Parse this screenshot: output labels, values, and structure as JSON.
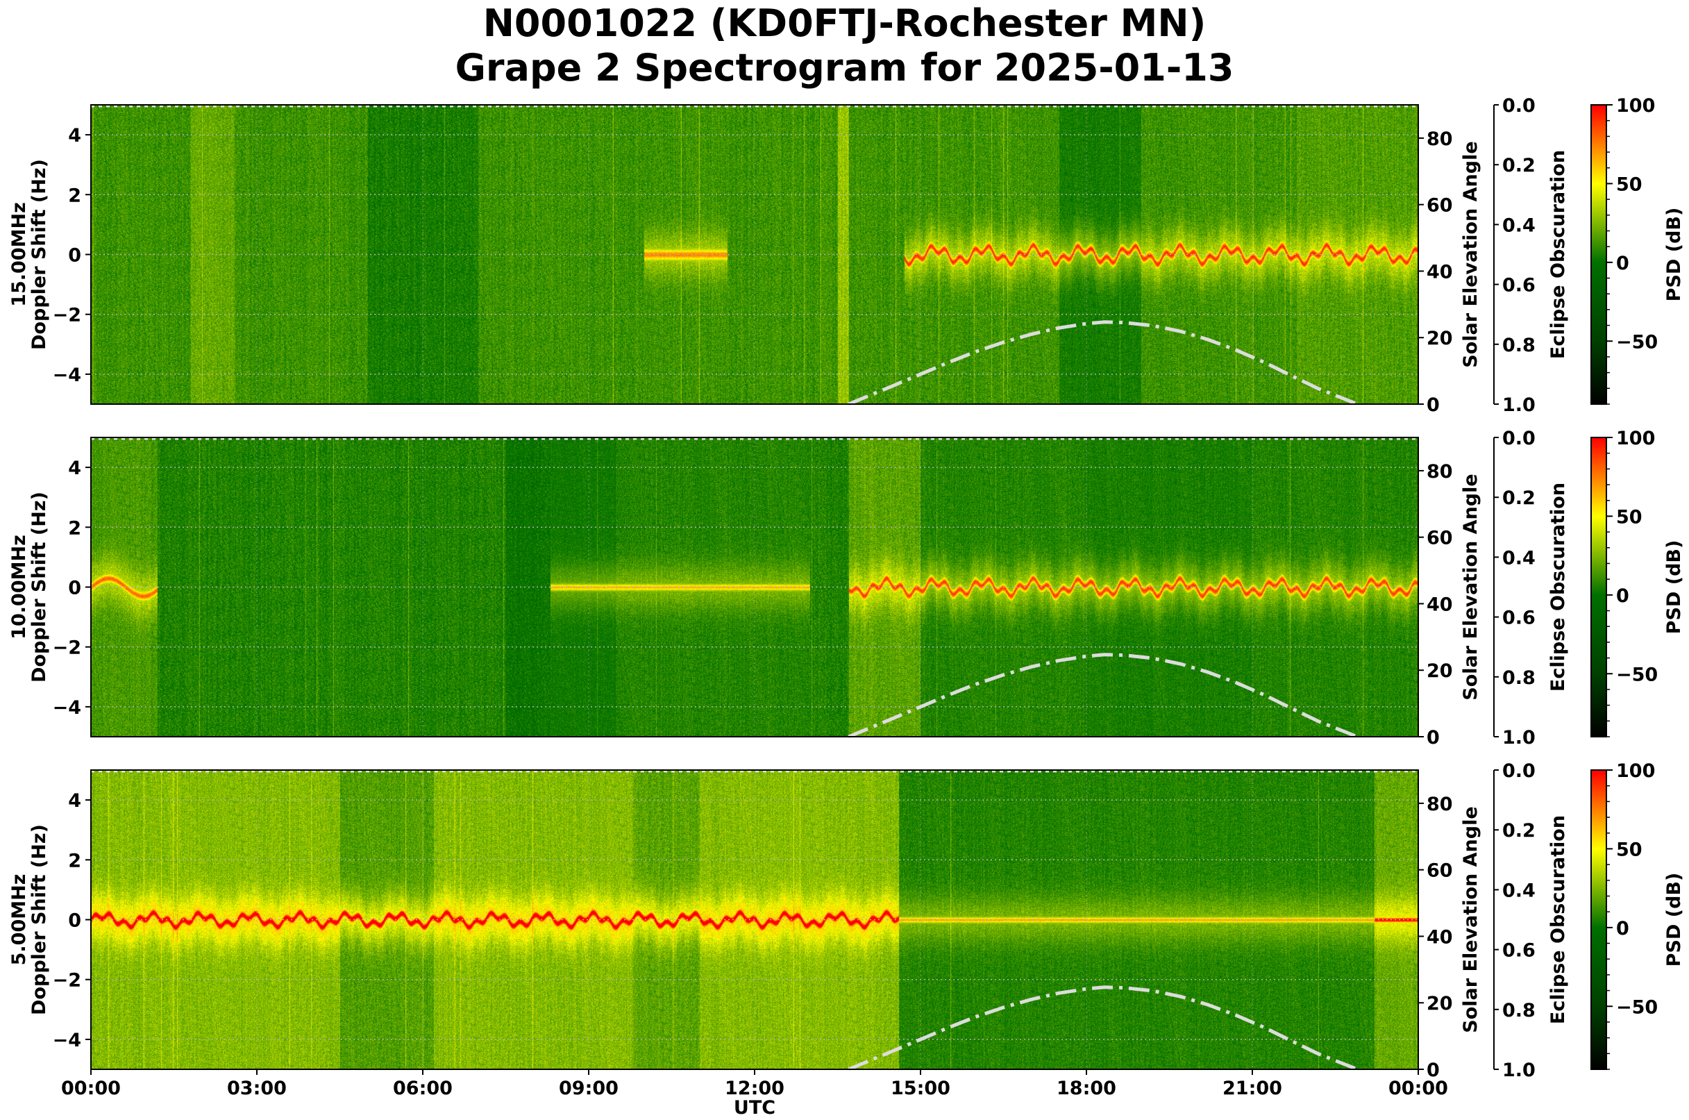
{
  "title_line1": "N0001022 (KD0FTJ-Rochester MN)",
  "title_line2": "Grape 2 Spectrogram for 2025-01-13",
  "chart_data": {
    "type": "heatmap",
    "xlabel": "UTC",
    "x_ticks": [
      "00:00",
      "03:00",
      "06:00",
      "09:00",
      "12:00",
      "15:00",
      "18:00",
      "21:00",
      "00:00"
    ],
    "x_range_hours": [
      0,
      24
    ],
    "grid": true,
    "panels": [
      {
        "frequency_label": "15.00MHz",
        "ylabel": "Doppler Shift (Hz)"
      },
      {
        "frequency_label": "10.00MHz",
        "ylabel": "Doppler Shift (Hz)"
      },
      {
        "frequency_label": "5.00MHz",
        "ylabel": "Doppler Shift (Hz)"
      }
    ],
    "y_range": [
      -5,
      5
    ],
    "y_ticks": [
      -4,
      -2,
      0,
      2,
      4
    ],
    "elevation_axis": {
      "label": "Solar Elevation Angle",
      "range": [
        0,
        90
      ],
      "ticks": [
        0,
        20,
        40,
        60,
        80
      ]
    },
    "eclipse_axis": {
      "label": "Eclipse Obscuration",
      "range": [
        0.0,
        1.0
      ],
      "inverted": true,
      "ticks": [
        "0.0",
        "0.2",
        "0.4",
        "0.6",
        "0.8",
        "1.0"
      ]
    },
    "colorbar": {
      "label": "PSD (dB)",
      "range": [
        -90,
        100
      ],
      "ticks": [
        100,
        50,
        0,
        -50
      ],
      "colors": [
        "#000000",
        "#004000",
        "#007000",
        "#ffff00",
        "#ff0000"
      ]
    },
    "solar_elevation_curve": {
      "style": "dash-dot",
      "color": "#dcdcdc",
      "hours": [
        13.7,
        14.5,
        15.0,
        15.5,
        16.0,
        16.5,
        17.0,
        17.5,
        18.0,
        18.33,
        18.7,
        19.2,
        19.7,
        20.2,
        20.7,
        21.2,
        21.7,
        22.2,
        22.9
      ],
      "degrees": [
        0,
        5.5,
        9,
        12.5,
        15.8,
        18.6,
        21,
        22.9,
        24.2,
        24.7,
        24.5,
        23.6,
        21.9,
        19.4,
        16.3,
        12.7,
        8.6,
        4.6,
        0
      ]
    }
  }
}
